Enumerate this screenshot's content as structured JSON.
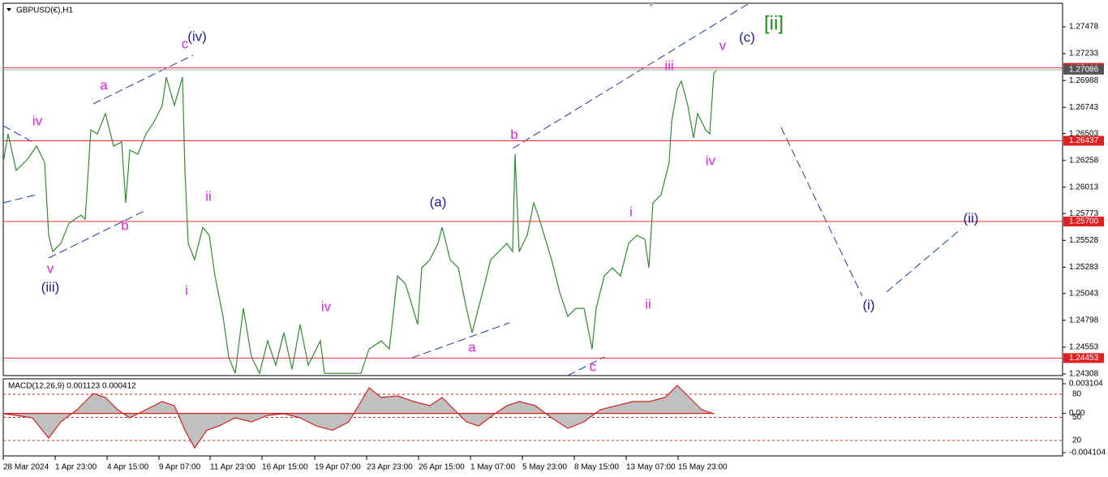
{
  "chart_data": [
    {
      "type": "line",
      "title": "GBPUSD(€),H1",
      "color": "#2e8b2e",
      "x": [
        0,
        6,
        16,
        31,
        41,
        51,
        56,
        61,
        71,
        81,
        96,
        101,
        108,
        116,
        126,
        136,
        146,
        151,
        156,
        166,
        176,
        186,
        196,
        201,
        211,
        221,
        224,
        228,
        236,
        246,
        254,
        261,
        271,
        278,
        286,
        296,
        306,
        316,
        326,
        336,
        346,
        356,
        366,
        376,
        391,
        396,
        441,
        451,
        466,
        476,
        486,
        496,
        511,
        516,
        526,
        536,
        541,
        551,
        561,
        571,
        578,
        591,
        601,
        611,
        621,
        628,
        631,
        636,
        646,
        654,
        661,
        676,
        686,
        696,
        706,
        716,
        726,
        731,
        741,
        751,
        761,
        771,
        781,
        791,
        796,
        801,
        811,
        821,
        824,
        831,
        836,
        844,
        851,
        856,
        866,
        871,
        876,
        879
      ],
      "values": [
        1.26241,
        1.265,
        1.26166,
        1.26278,
        1.26389,
        1.26241,
        1.25574,
        1.25425,
        1.255,
        1.25685,
        1.25759,
        1.25722,
        1.26537,
        1.265,
        1.26685,
        1.26389,
        1.26426,
        1.2587,
        1.26352,
        1.26315,
        1.265,
        1.26611,
        1.26759,
        1.27019,
        1.26759,
        1.27019,
        1.26166,
        1.255,
        1.25351,
        1.25648,
        1.25574,
        1.25203,
        1.24833,
        1.24462,
        1.24314,
        1.24907,
        1.24462,
        1.24314,
        1.2461,
        1.24388,
        1.24684,
        1.24351,
        1.24759,
        1.24388,
        1.2461,
        1.24314,
        1.24314,
        1.24536,
        1.2461,
        1.24536,
        1.25203,
        1.25129,
        1.24759,
        1.25277,
        1.25351,
        1.255,
        1.25648,
        1.25351,
        1.25277,
        1.24907,
        1.24684,
        1.25055,
        1.25351,
        1.25425,
        1.255,
        1.25425,
        1.26315,
        1.25425,
        1.25574,
        1.2587,
        1.25722,
        1.25351,
        1.25055,
        1.24833,
        1.24907,
        1.24907,
        1.24536,
        1.24907,
        1.25203,
        1.25277,
        1.25203,
        1.255,
        1.25574,
        1.25537,
        1.25277,
        1.2587,
        1.25944,
        1.26241,
        1.26611,
        1.26907,
        1.26982,
        1.26759,
        1.26463,
        1.26685,
        1.26537,
        1.265,
        1.27056,
        1.27078
      ],
      "xlim": [
        0,
        1306
      ],
      "ylim": [
        1.24293,
        1.27693
      ],
      "yticks": [
        1.27478,
        1.27233,
        1.26988,
        1.26743,
        1.26503,
        1.26258,
        1.26013,
        1.25773,
        1.25528,
        1.25283,
        1.25043,
        1.24798,
        1.24553,
        1.24308
      ],
      "xticks": [
        {
          "value": 0,
          "label": "28 Mar 2024"
        },
        {
          "value": 64,
          "label": "1 Apr 23:00"
        },
        {
          "value": 128,
          "label": "4 Apr 15:00"
        },
        {
          "value": 192,
          "label": "9 Apr 07:00"
        },
        {
          "value": 255,
          "label": "11 Apr 23:00"
        },
        {
          "value": 319,
          "label": "16 Apr 15:00"
        },
        {
          "value": 384,
          "label": "19 Apr 07:00"
        },
        {
          "value": 448,
          "label": "23 Apr 23:00"
        },
        {
          "value": 512,
          "label": "26 Apr 15:00"
        },
        {
          "value": 576,
          "label": "1 May 07:00"
        },
        {
          "value": 640,
          "label": "5 May 23:00"
        },
        {
          "value": 704,
          "label": "8 May 15:00"
        },
        {
          "value": 768,
          "label": "13 May 07:00"
        },
        {
          "value": 832,
          "label": "15 May 23:00"
        }
      ],
      "levels": [
        1.27103,
        1.26437,
        {
          "value": 1.257,
          "label": "1.25700"
        },
        1.24453
      ],
      "current_price": 1.27086,
      "annotations": [
        {
          "text": "(iv)",
          "color": "#1a1a9a"
        },
        {
          "text": "c",
          "color": "#e020e0"
        },
        {
          "text": "a",
          "color": "#e020e0"
        },
        {
          "text": "iv",
          "color": "#e020e0"
        },
        {
          "text": "b",
          "color": "#e020e0"
        },
        {
          "text": "v",
          "color": "#e020e0"
        },
        {
          "text": "(iii)",
          "color": "#1a1a9a"
        },
        {
          "text": "ii",
          "color": "#e020e0"
        },
        {
          "text": "i",
          "color": "#e020e0"
        },
        {
          "text": "iv",
          "color": "#e020e0"
        },
        {
          "text": "(a)",
          "color": "#1a1a9a"
        },
        {
          "text": "b",
          "color": "#e020e0"
        },
        {
          "text": "a",
          "color": "#e020e0"
        },
        {
          "text": "c",
          "color": "#e020e0"
        },
        {
          "text": "i",
          "color": "#e020e0"
        },
        {
          "text": "ii",
          "color": "#e020e0"
        },
        {
          "text": "iii",
          "color": "#e020e0"
        },
        {
          "text": "iv",
          "color": "#e020e0"
        },
        {
          "text": "v",
          "color": "#e020e0"
        },
        {
          "text": "(c)",
          "color": "#1a1a9a"
        },
        {
          "text": "[ii]",
          "color": "#1a8a1a"
        },
        {
          "text": "(i)",
          "color": "#1a1a9a"
        },
        {
          "text": "(ii)",
          "color": "#1a1a9a"
        }
      ]
    },
    {
      "type": "area",
      "title": "MACD(12,26,9) 0.001123 0.000412",
      "color": "#c0c0c0",
      "line_color": "#d02020",
      "x": [
        0,
        16,
        36,
        56,
        71,
        91,
        111,
        126,
        141,
        156,
        176,
        196,
        211,
        224,
        236,
        251,
        266,
        286,
        306,
        326,
        346,
        366,
        386,
        406,
        426,
        441,
        451,
        466,
        486,
        506,
        526,
        541,
        556,
        571,
        586,
        606,
        621,
        636,
        656,
        676,
        696,
        716,
        736,
        756,
        776,
        796,
        816,
        831,
        844,
        861,
        876
      ],
      "values": [
        -3e-05,
        -0.0002,
        -0.00046,
        -0.00258,
        -0.00088,
        0.00039,
        0.00209,
        0.00166,
        0.00039,
        -0.00046,
        0.00039,
        0.00124,
        0.00081,
        -0.00176,
        -0.0036,
        -0.00176,
        -0.00131,
        -0.00046,
        -0.00088,
        -0.0002,
        -3e-05,
        -0.00046,
        -0.00131,
        -0.00176,
        -0.00088,
        0.00124,
        0.00268,
        0.00166,
        0.00183,
        0.00124,
        0.00081,
        0.00166,
        0.00039,
        -0.00088,
        -0.00131,
        -3e-05,
        0.00081,
        0.00124,
        0.00081,
        -0.00046,
        -0.00156,
        -0.00088,
        0.00039,
        0.00081,
        0.00124,
        0.00124,
        0.00166,
        0.00293,
        0.00183,
        0.00039,
        -3e-05
      ],
      "xlim": [
        0,
        1306
      ],
      "ylim": [
        -0.004443,
        0.003613
      ],
      "yticks": [
        0.003104,
        {
          "value": 0,
          "label": "0.00"
        },
        -0.004104
      ],
      "y2lim": [
        0,
        100
      ],
      "y2ticks": [
        80,
        50,
        20
      ]
    }
  ]
}
